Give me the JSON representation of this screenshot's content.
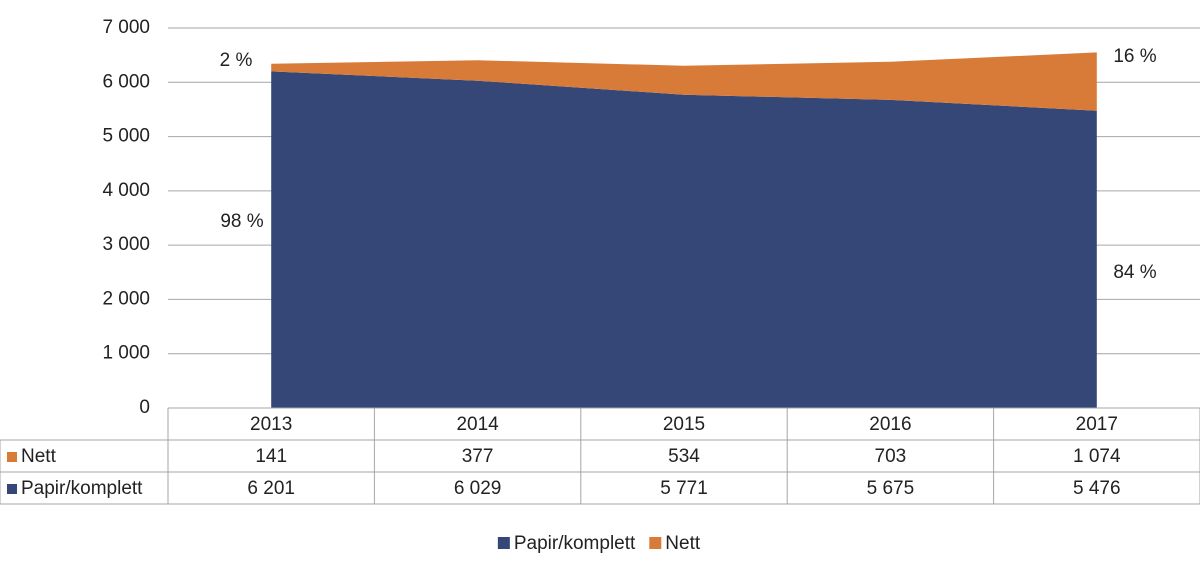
{
  "chart_data": {
    "type": "stacked-area",
    "categories": [
      "2013",
      "2014",
      "2015",
      "2016",
      "2017"
    ],
    "series": [
      {
        "name": "Papir/komplett",
        "color": "#344777",
        "values": [
          6201,
          6029,
          5771,
          5675,
          5476
        ],
        "value_labels": [
          "6 201",
          "6 029",
          "5 771",
          "5 675",
          "5 476"
        ]
      },
      {
        "name": "Nett",
        "color": "#d97b38",
        "values": [
          141,
          377,
          534,
          703,
          1074
        ],
        "value_labels": [
          "141",
          "377",
          "534",
          "703",
          "1 074"
        ]
      }
    ],
    "ylim": [
      0,
      7000
    ],
    "yticks": [
      0,
      {
        "value": 1000,
        "label": "1 000"
      },
      {
        "value": 2000,
        "label": "2 000"
      },
      {
        "value": 3000,
        "label": "3 000"
      },
      {
        "value": 4000,
        "label": "4 000"
      },
      {
        "value": 5000,
        "label": "5 000"
      },
      {
        "value": 6000,
        "label": "6 000"
      },
      {
        "value": 7000,
        "label": "7 000"
      }
    ],
    "grid": true,
    "annotations": [
      "2 %",
      "98 %",
      "16 %",
      "84 %"
    ]
  }
}
